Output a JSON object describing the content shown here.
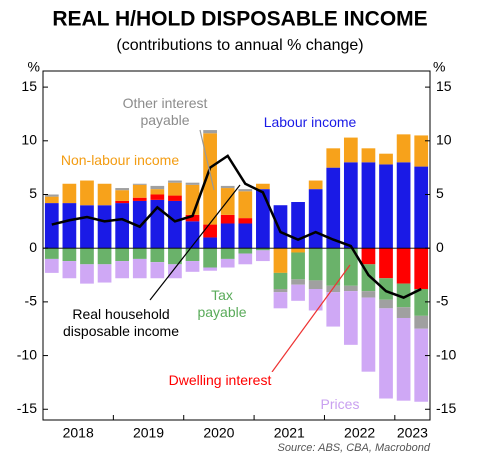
{
  "chart_data": {
    "type": "bar",
    "title": "REAL H/HOLD DISPOSABLE INCOME",
    "subtitle": "(contributions to annual % change)",
    "y_unit": "%",
    "source": "Source: ABS, CBA, Macrobond",
    "categories": [
      null,
      "2018",
      null,
      null,
      null,
      "2019",
      null,
      null,
      null,
      "2020",
      null,
      null,
      null,
      "2021",
      null,
      null,
      null,
      "2022",
      null,
      null,
      "2023",
      null
    ],
    "series": [
      {
        "name": "Labour income",
        "color": "#1a1ae6",
        "values": [
          4.2,
          4.2,
          4.0,
          4.0,
          4.2,
          4.4,
          4.5,
          4.4,
          2.5,
          1.0,
          2.3,
          2.3,
          5.5,
          4.0,
          4.3,
          5.5,
          7.5,
          8.0,
          8.0,
          7.8,
          8.0,
          7.6
        ]
      },
      {
        "name": "Dwelling interest",
        "color": "#ff0000",
        "values": [
          0,
          0,
          0,
          0,
          0.2,
          0.3,
          0.5,
          0.5,
          0.6,
          1.2,
          0.8,
          0.5,
          0,
          0,
          0,
          0,
          0,
          0,
          -1.5,
          -2.8,
          -3.3,
          -3.8
        ]
      },
      {
        "name": "Non-labour income",
        "color": "#f7a21b",
        "values": [
          0.6,
          1.8,
          2.3,
          2.0,
          1.0,
          1.2,
          0.5,
          1.2,
          2.8,
          8.5,
          2.5,
          2.5,
          0.5,
          -2.3,
          -0.4,
          0.8,
          1.8,
          2.3,
          1.3,
          1.0,
          2.6,
          2.9
        ]
      },
      {
        "name": "Other interest payable",
        "color": "#a0a0a0",
        "values": [
          0.2,
          0,
          0,
          0,
          0.2,
          0.1,
          0.3,
          0.2,
          0.2,
          0.3,
          0.2,
          0.2,
          0,
          -0.3,
          -0.5,
          -0.8,
          -0.6,
          -0.5,
          -0.6,
          -0.8,
          -1.0,
          -1.2
        ]
      },
      {
        "name": "Tax payable",
        "color": "#6ab26a",
        "values": [
          -1.0,
          -1.2,
          -1.5,
          -1.5,
          -1.2,
          -1.0,
          -1.3,
          -1.5,
          -1.2,
          -1.8,
          -1.0,
          -0.5,
          -0.2,
          -1.5,
          -2.5,
          -3.0,
          -3.5,
          -3.5,
          -2.5,
          -2.0,
          -2.2,
          -2.5
        ]
      },
      {
        "name": "Prices",
        "color": "#cfa8f5",
        "values": [
          -1.3,
          -1.6,
          -1.8,
          -1.7,
          -1.6,
          -1.8,
          -1.5,
          -1.3,
          -1.0,
          -0.3,
          -0.8,
          -1.0,
          -1.0,
          -1.5,
          -1.5,
          -2.0,
          -3.2,
          -5.0,
          -6.9,
          -8.4,
          -7.7,
          -6.8
        ]
      },
      {
        "name": "Real household disposable income",
        "color": "#000000",
        "type": "line",
        "values": [
          2.2,
          2.6,
          2.9,
          2.5,
          2.7,
          2.0,
          3.8,
          2.5,
          3.0,
          7.5,
          8.6,
          6.0,
          5.2,
          1.5,
          0.8,
          1.5,
          0.8,
          0.2,
          -2.5,
          -4.0,
          -4.6,
          -3.8
        ]
      }
    ],
    "ylim": [
      -16,
      16.5
    ],
    "yticks": [
      -15,
      -10,
      -5,
      0,
      5,
      10,
      15
    ],
    "grid": false
  }
}
